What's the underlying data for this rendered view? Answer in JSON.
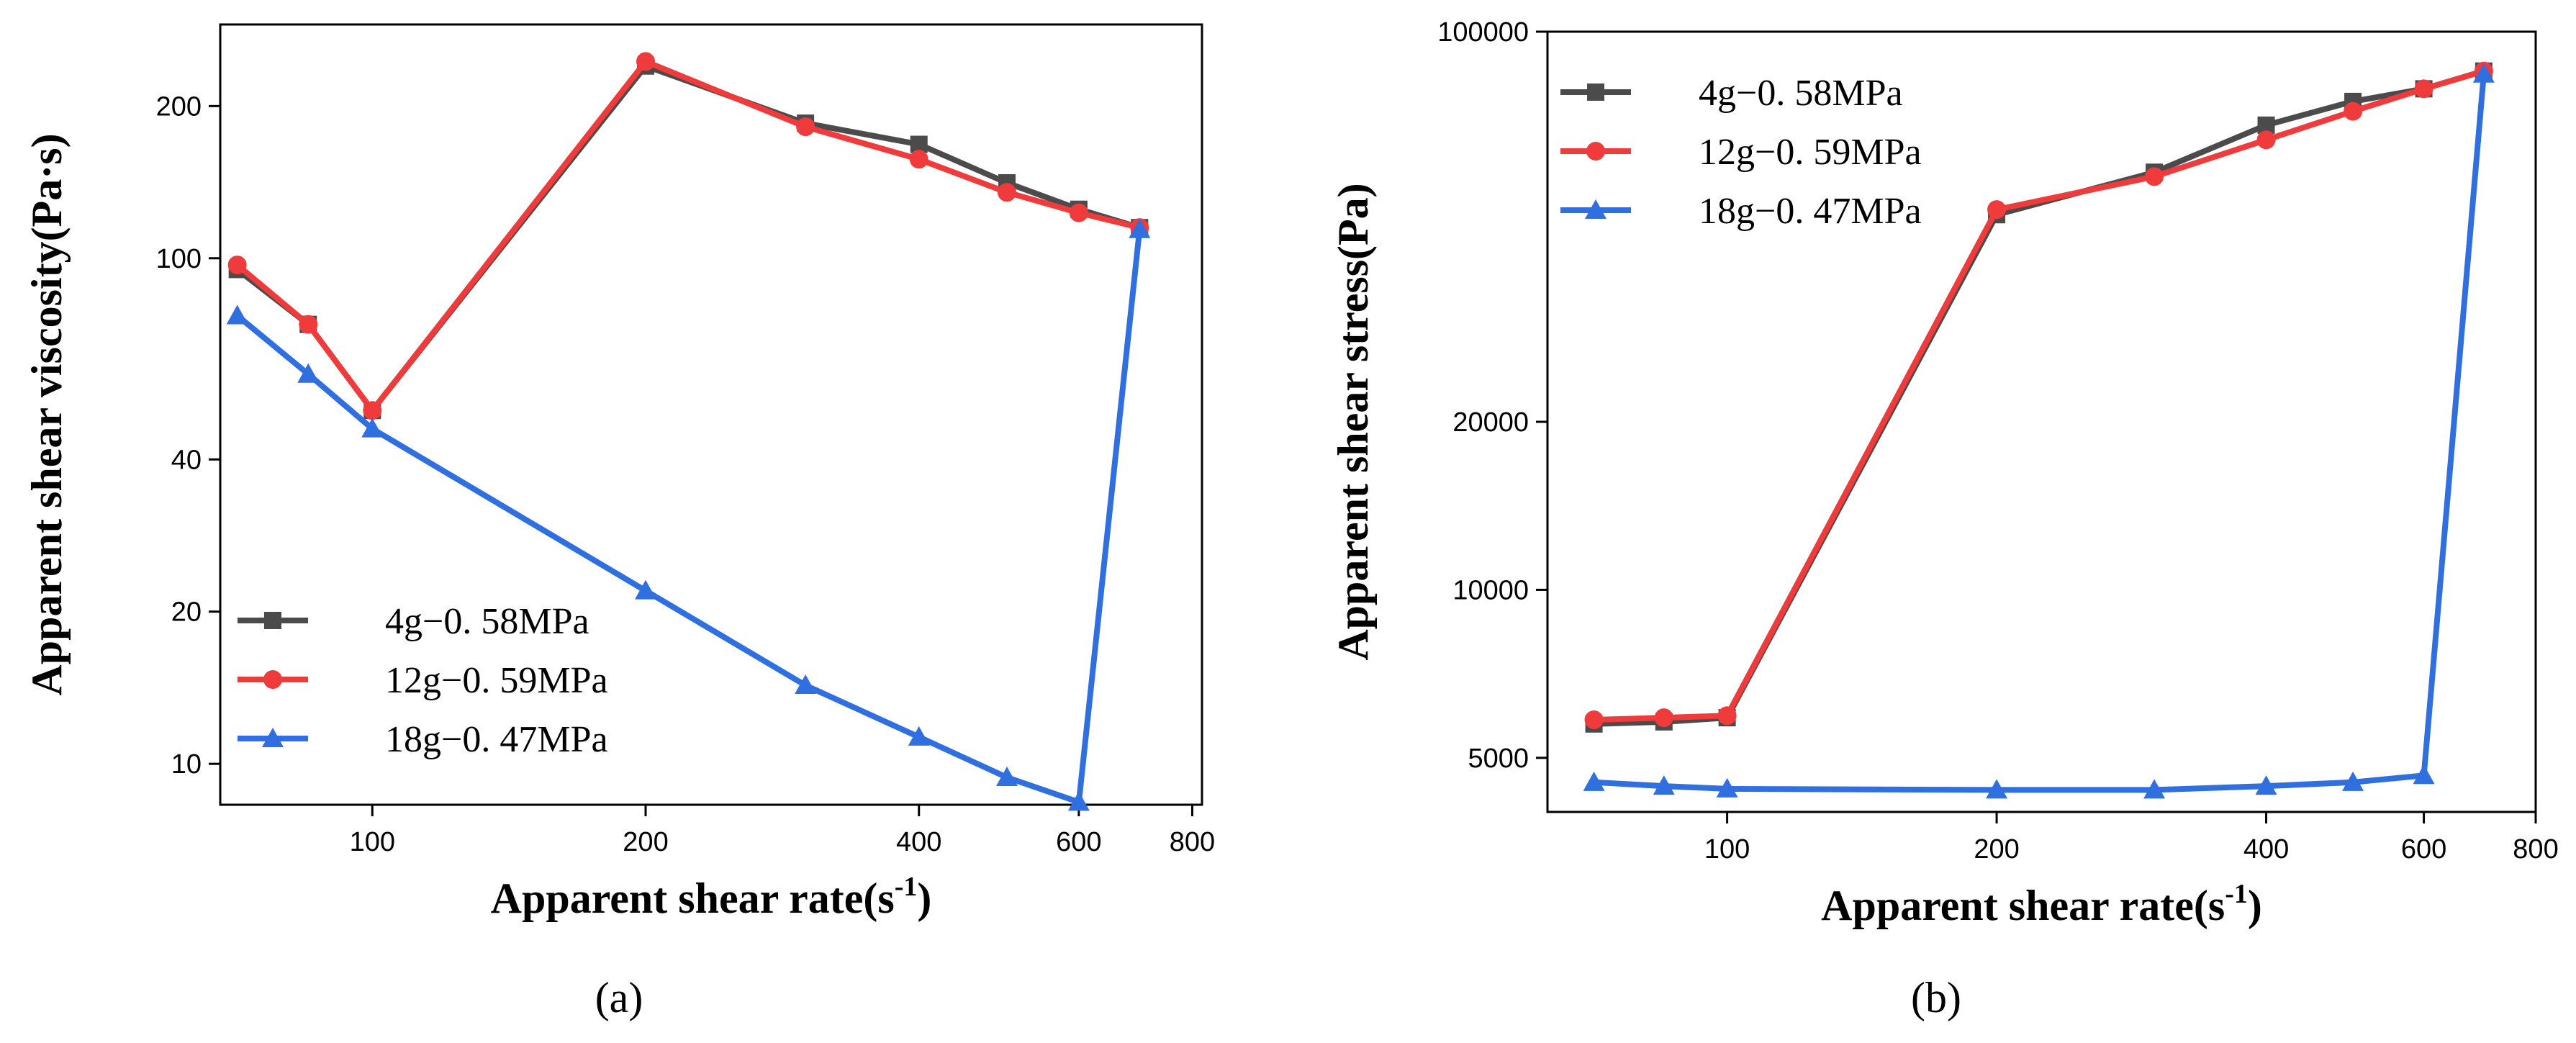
{
  "chart_data": [
    {
      "type": "line",
      "panel_label": "(a)",
      "xscale": "log",
      "yscale": "log",
      "xlabel": "Apparent shear rate(s",
      "xlabel_sup": "-1",
      "xlabel_end": ")",
      "ylabel": "Apparent shear viscosity(Pa·s)",
      "xlim": [
        68,
        820
      ],
      "ylim": [
        8.3,
        290
      ],
      "xticks": [
        100,
        200,
        400,
        600,
        800
      ],
      "yticks": [
        10,
        20,
        40,
        100,
        200
      ],
      "legend_position": "bottom-left",
      "series": [
        {
          "name": "4g−0. 58MPa",
          "color": "#4b4b4b",
          "marker": "square",
          "x": [
            71,
            85,
            100,
            200,
            300,
            400,
            500,
            600,
            700
          ],
          "y": [
            95,
            74,
            50,
            240,
            185,
            168,
            141,
            125,
            115
          ]
        },
        {
          "name": "12g−0. 59MPa",
          "color": "#ef3b3b",
          "marker": "circle",
          "x": [
            71,
            85,
            100,
            200,
            300,
            400,
            500,
            600,
            700
          ],
          "y": [
            97,
            74,
            50,
            245,
            182,
            157,
            135,
            123,
            115
          ]
        },
        {
          "name": "18g−0. 47MPa",
          "color": "#2f6fe0",
          "marker": "triangle",
          "x": [
            71,
            85,
            100,
            200,
            300,
            400,
            500,
            600,
            700
          ],
          "y": [
            77,
            59,
            46,
            22,
            14.3,
            11.3,
            9.4,
            8.4,
            114
          ]
        }
      ]
    },
    {
      "type": "line",
      "panel_label": "(b)",
      "xscale": "log",
      "yscale": "log",
      "xlabel": "Apparent shear rate(s",
      "xlabel_sup": "-1",
      "xlabel_end": ")",
      "ylabel": "Apparent shear stress(Pa)",
      "xlim": [
        63,
        800
      ],
      "ylim": [
        4000,
        100000
      ],
      "xticks": [
        100,
        200,
        400,
        600,
        800
      ],
      "yticks": [
        5000,
        10000,
        20000,
        100000
      ],
      "legend_position": "top-left",
      "series": [
        {
          "name": "4g−0. 58MPa",
          "color": "#4b4b4b",
          "marker": "square",
          "x": [
            71,
            85,
            100,
            200,
            300,
            400,
            500,
            600,
            700
          ],
          "y": [
            5750,
            5800,
            5900,
            47000,
            56000,
            68000,
            75000,
            79000,
            85000
          ]
        },
        {
          "name": "12g−0. 59MPa",
          "color": "#ef3b3b",
          "marker": "circle",
          "x": [
            71,
            85,
            100,
            200,
            300,
            400,
            500,
            600,
            700
          ],
          "y": [
            5850,
            5900,
            5950,
            48000,
            55000,
            64000,
            72000,
            79000,
            85000
          ]
        },
        {
          "name": "18g−0. 47MPa",
          "color": "#2f6fe0",
          "marker": "triangle",
          "x": [
            71,
            85,
            100,
            200,
            300,
            400,
            500,
            600,
            700
          ],
          "y": [
            4520,
            4450,
            4400,
            4380,
            4380,
            4450,
            4520,
            4650,
            84000
          ]
        }
      ]
    }
  ]
}
